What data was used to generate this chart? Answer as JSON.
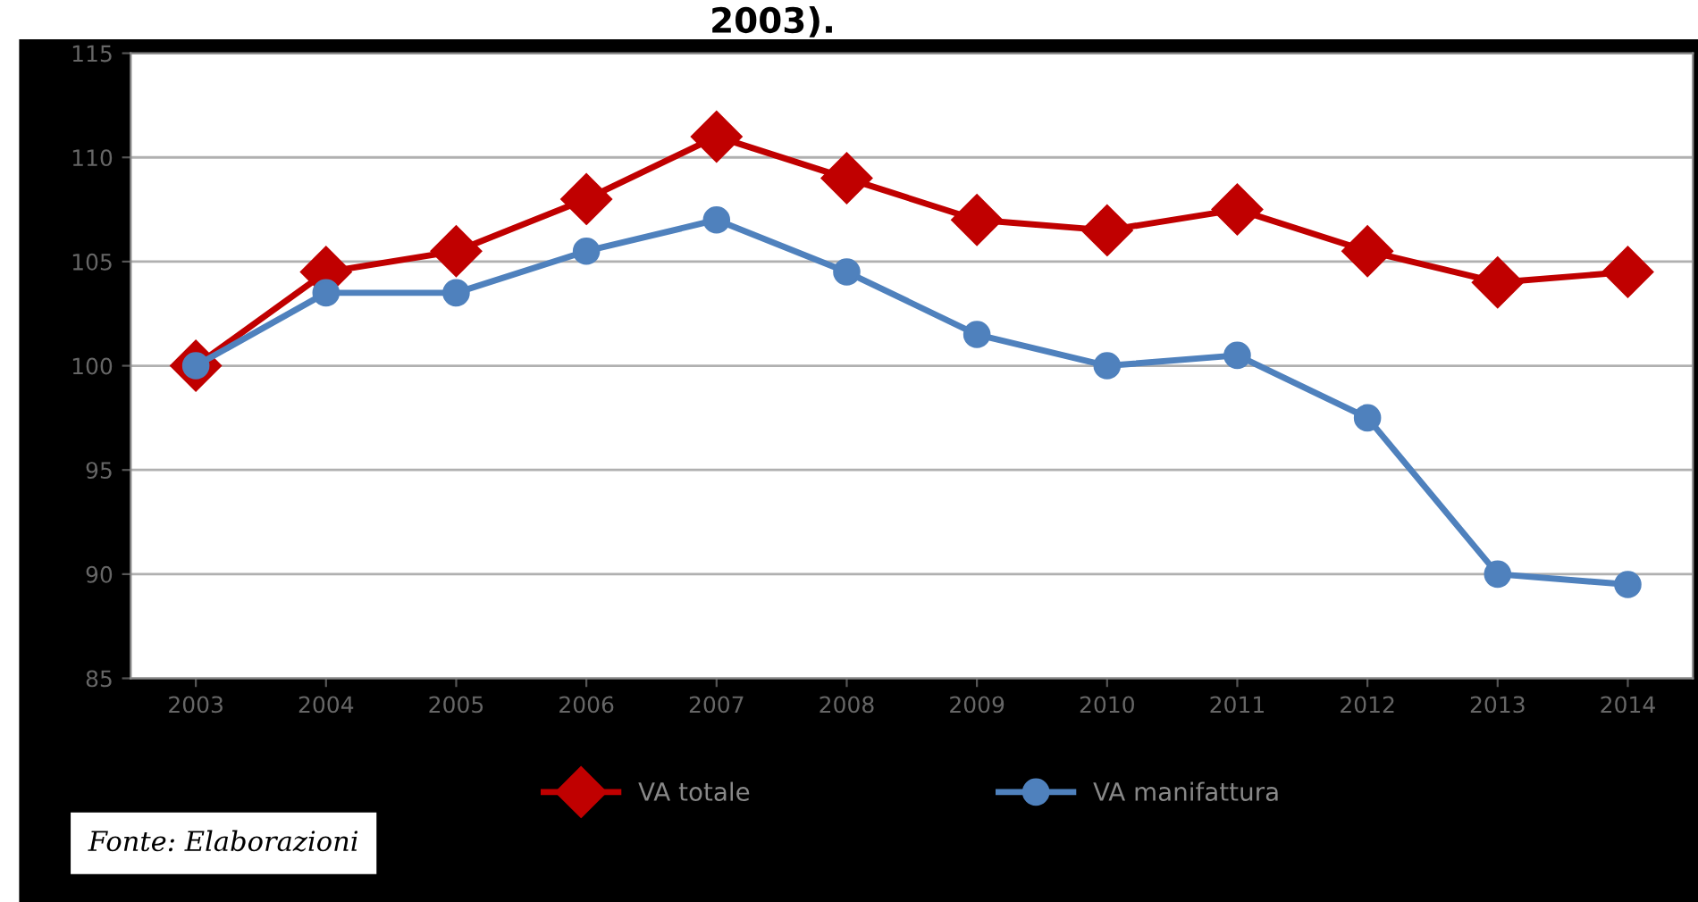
{
  "chart_data": {
    "type": "line",
    "title": "2003).",
    "categories": [
      "2003",
      "2004",
      "2005",
      "2006",
      "2007",
      "2008",
      "2009",
      "2010",
      "2011",
      "2012",
      "2013",
      "2014"
    ],
    "series": [
      {
        "name": "VA totale",
        "color": "#c00000",
        "values": [
          100,
          104.5,
          105.5,
          108,
          111,
          109,
          107,
          106.5,
          107.5,
          105.5,
          104,
          104.5
        ],
        "marker": "diamond"
      },
      {
        "name": "VA manifattura",
        "color": "#4f81bd",
        "values": [
          100,
          103.5,
          103.5,
          105.5,
          107,
          104.5,
          101.5,
          100,
          100.5,
          97.5,
          90,
          89.5
        ],
        "marker": "circle"
      }
    ],
    "ylim": [
      85,
      115
    ],
    "yticks": [
      85,
      90,
      95,
      100,
      105,
      110,
      115
    ],
    "grid": "y",
    "legend": "bottom",
    "annotations": [
      "Fonte: Elaborazioni"
    ]
  }
}
